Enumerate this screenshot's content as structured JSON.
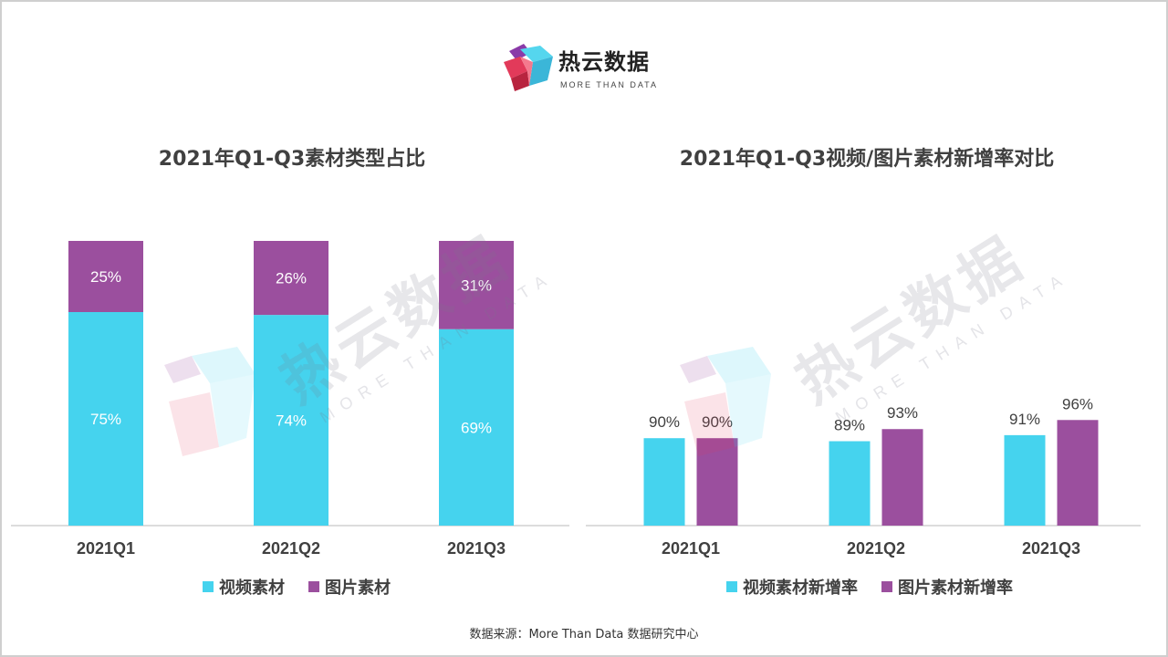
{
  "brand": {
    "name": "热云数据",
    "tagline": "MORE THAN DATA"
  },
  "colors": {
    "cyan": "#45D3EE",
    "purple": "#9B4F9E",
    "axis": "#d0d0d0"
  },
  "source": "数据来源：More Than Data 数据研究中心",
  "chart_data": [
    {
      "type": "bar",
      "stacked": true,
      "title": "2021年Q1-Q3素材类型占比",
      "categories": [
        "2021Q1",
        "2021Q2",
        "2021Q3"
      ],
      "series": [
        {
          "name": "视频素材",
          "values": [
            75,
            74,
            69
          ],
          "labels": [
            "75%",
            "74%",
            "69%"
          ],
          "color": "#45D3EE"
        },
        {
          "name": "图片素材",
          "values": [
            25,
            26,
            31
          ],
          "labels": [
            "25%",
            "26%",
            "31%"
          ],
          "color": "#9B4F9E"
        }
      ],
      "ylim": [
        0,
        100
      ],
      "grid": false,
      "legend": "bottom"
    },
    {
      "type": "bar",
      "stacked": false,
      "title": "2021年Q1-Q3视频/图片素材新增率对比",
      "categories": [
        "2021Q1",
        "2021Q2",
        "2021Q3"
      ],
      "series": [
        {
          "name": "视频素材新增率",
          "values": [
            90,
            89,
            91
          ],
          "labels": [
            "90%",
            "89%",
            "91%"
          ],
          "color": "#45D3EE"
        },
        {
          "name": "图片素材新增率",
          "values": [
            90,
            93,
            96
          ],
          "labels": [
            "90%",
            "93%",
            "96%"
          ],
          "color": "#9B4F9E"
        }
      ],
      "ylim": [
        0,
        100
      ],
      "grid": false,
      "legend": "bottom"
    }
  ]
}
